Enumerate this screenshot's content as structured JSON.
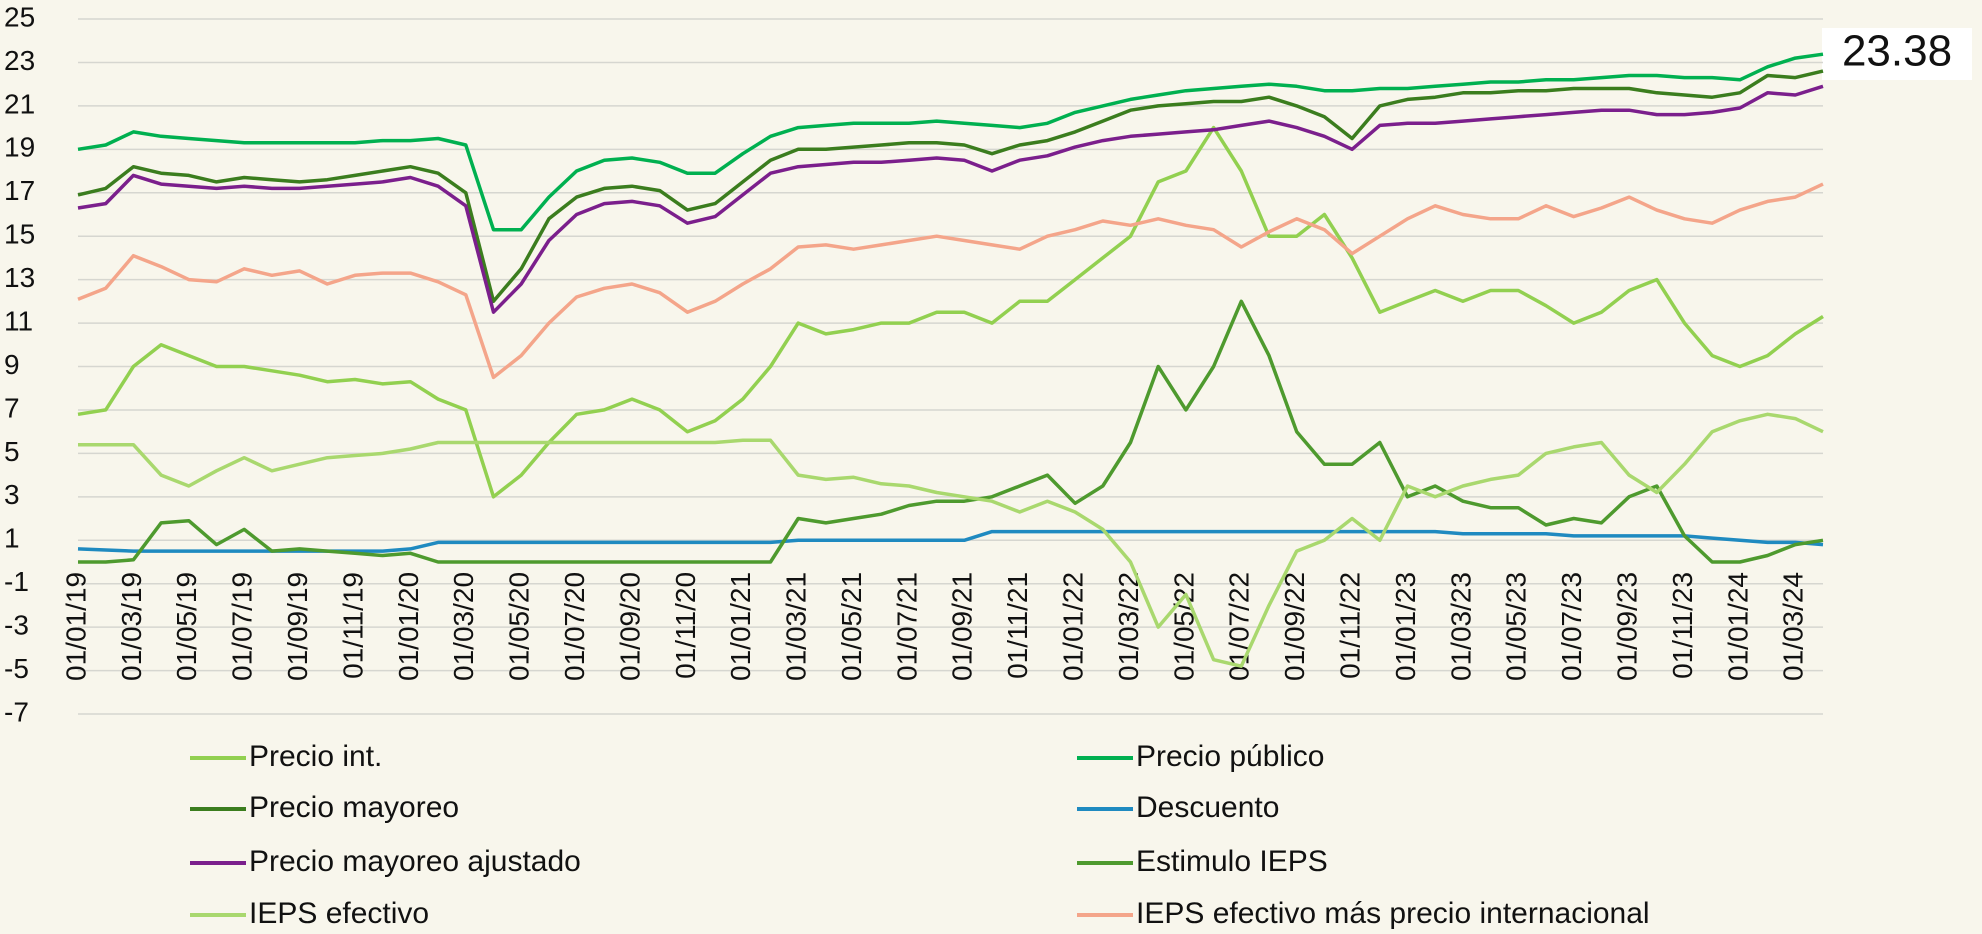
{
  "chart_data": {
    "type": "line",
    "annotation": "23.38",
    "categories": [
      "01/01/19",
      null,
      "01/03/19",
      null,
      "01/05/19",
      null,
      "01/07/19",
      null,
      "01/09/19",
      null,
      "01/11/19",
      null,
      "01/01/20",
      null,
      "01/03/20",
      null,
      "01/05/20",
      null,
      "01/07/20",
      null,
      "01/09/20",
      null,
      "01/11/20",
      null,
      "01/01/21",
      null,
      "01/03/21",
      null,
      "01/05/21",
      null,
      "01/07/21",
      null,
      "01/09/21",
      null,
      "01/11/21",
      null,
      "01/01/22",
      null,
      "01/03/22",
      null,
      "01/05/22",
      null,
      "01/07/22",
      null,
      "01/09/22",
      null,
      "01/11/22",
      null,
      "01/01/23",
      null,
      "01/03/23",
      null,
      "01/05/23",
      null,
      "01/07/23",
      null,
      "01/09/23",
      null,
      "01/11/23",
      null,
      "01/01/24",
      null,
      "01/03/24",
      null
    ],
    "ylim": [
      -7,
      25
    ],
    "yticks": [
      -7,
      -5,
      -3,
      -1,
      1,
      3,
      5,
      7,
      9,
      11,
      13,
      15,
      17,
      19,
      21,
      23,
      25
    ],
    "grid": true,
    "series": [
      {
        "name": "Precio int.",
        "color": "#92d050",
        "values": [
          6.8,
          7.0,
          9.0,
          10.0,
          9.5,
          9.0,
          9.0,
          8.8,
          8.6,
          8.3,
          8.4,
          8.2,
          8.3,
          7.5,
          7.0,
          3.0,
          4.0,
          5.5,
          6.8,
          7.0,
          7.5,
          7.0,
          6.0,
          6.5,
          7.5,
          9.0,
          11.0,
          10.5,
          10.7,
          11.0,
          11.0,
          11.5,
          11.5,
          11.0,
          12.0,
          12.0,
          13.0,
          14.0,
          15.0,
          17.5,
          18.0,
          20.0,
          18.0,
          15.0,
          15.0,
          16.0,
          14.0,
          11.5,
          12.0,
          12.5,
          12.0,
          12.5,
          12.5,
          11.8,
          11.0,
          11.5,
          12.5,
          13.0,
          11.0,
          9.5,
          9.0,
          9.5,
          10.5,
          11.3
        ]
      },
      {
        "name": "Precio público",
        "color": "#00b050",
        "values": [
          19,
          19.2,
          19.8,
          19.6,
          19.5,
          19.4,
          19.3,
          19.3,
          19.3,
          19.3,
          19.3,
          19.4,
          19.4,
          19.5,
          19.2,
          15.3,
          15.3,
          16.8,
          18.0,
          18.5,
          18.6,
          18.4,
          17.9,
          17.9,
          18.8,
          19.6,
          20.0,
          20.1,
          20.2,
          20.2,
          20.2,
          20.3,
          20.2,
          20.1,
          20.0,
          20.2,
          20.7,
          21.0,
          21.3,
          21.5,
          21.7,
          21.8,
          21.9,
          22.0,
          21.9,
          21.7,
          21.7,
          21.8,
          21.8,
          21.9,
          22.0,
          22.1,
          22.1,
          22.2,
          22.2,
          22.3,
          22.4,
          22.4,
          22.3,
          22.3,
          22.2,
          22.8,
          23.2,
          23.38
        ]
      },
      {
        "name": "Precio mayoreo",
        "color": "#3b7d1e",
        "values": [
          16.9,
          17.2,
          18.2,
          17.9,
          17.8,
          17.5,
          17.7,
          17.6,
          17.5,
          17.6,
          17.8,
          18.0,
          18.2,
          17.9,
          17.0,
          12.0,
          13.5,
          15.8,
          16.8,
          17.2,
          17.3,
          17.1,
          16.2,
          16.5,
          17.5,
          18.5,
          19.0,
          19.0,
          19.1,
          19.2,
          19.3,
          19.3,
          19.2,
          18.8,
          19.2,
          19.4,
          19.8,
          20.3,
          20.8,
          21.0,
          21.1,
          21.2,
          21.2,
          21.4,
          21.0,
          20.5,
          19.5,
          21.0,
          21.3,
          21.4,
          21.6,
          21.6,
          21.7,
          21.7,
          21.8,
          21.8,
          21.8,
          21.6,
          21.5,
          21.4,
          21.6,
          22.4,
          22.3,
          22.6
        ]
      },
      {
        "name": "Descuento",
        "color": "#1f8ac0",
        "values": [
          0.6,
          0.55,
          0.5,
          0.5,
          0.5,
          0.5,
          0.5,
          0.5,
          0.5,
          0.5,
          0.5,
          0.5,
          0.6,
          0.9,
          0.9,
          0.9,
          0.9,
          0.9,
          0.9,
          0.9,
          0.9,
          0.9,
          0.9,
          0.9,
          0.9,
          0.9,
          1.0,
          1.0,
          1.0,
          1.0,
          1.0,
          1.0,
          1.0,
          1.4,
          1.4,
          1.4,
          1.4,
          1.4,
          1.4,
          1.4,
          1.4,
          1.4,
          1.4,
          1.4,
          1.4,
          1.4,
          1.4,
          1.4,
          1.4,
          1.4,
          1.3,
          1.3,
          1.3,
          1.3,
          1.2,
          1.2,
          1.2,
          1.2,
          1.2,
          1.1,
          1.0,
          0.9,
          0.9,
          0.8
        ]
      },
      {
        "name": "Precio mayoreo ajustado",
        "color": "#7b1f8c",
        "values": [
          16.3,
          16.5,
          17.8,
          17.4,
          17.3,
          17.2,
          17.3,
          17.2,
          17.2,
          17.3,
          17.4,
          17.5,
          17.7,
          17.3,
          16.4,
          11.5,
          12.8,
          14.8,
          16.0,
          16.5,
          16.6,
          16.4,
          15.6,
          15.9,
          16.9,
          17.9,
          18.2,
          18.3,
          18.4,
          18.4,
          18.5,
          18.6,
          18.5,
          18.0,
          18.5,
          18.7,
          19.1,
          19.4,
          19.6,
          19.7,
          19.8,
          19.9,
          20.1,
          20.3,
          20.0,
          19.6,
          19.0,
          20.1,
          20.2,
          20.2,
          20.3,
          20.4,
          20.5,
          20.6,
          20.7,
          20.8,
          20.8,
          20.6,
          20.6,
          20.7,
          20.9,
          21.6,
          21.5,
          21.9
        ]
      },
      {
        "name": "Estimulo IEPS",
        "color": "#4e9a2e",
        "values": [
          0,
          0,
          0.1,
          1.8,
          1.9,
          0.8,
          1.5,
          0.5,
          0.6,
          0.5,
          0.4,
          0.3,
          0.4,
          0,
          0,
          0,
          0,
          0,
          0,
          0,
          0,
          0,
          0,
          0,
          0,
          0,
          2.0,
          1.8,
          2.0,
          2.2,
          2.6,
          2.8,
          2.8,
          3.0,
          3.5,
          4.0,
          2.7,
          3.5,
          5.5,
          9.0,
          7.0,
          9.0,
          12.0,
          9.5,
          6.0,
          4.5,
          4.5,
          5.5,
          3.0,
          3.5,
          2.8,
          2.5,
          2.5,
          1.7,
          2.0,
          1.8,
          3.0,
          3.5,
          1.2,
          0,
          0,
          0.3,
          0.8,
          1.0
        ]
      },
      {
        "name": "IEPS efectivo",
        "color": "#a9d86e",
        "values": [
          5.4,
          5.4,
          5.4,
          4.0,
          3.5,
          4.2,
          4.8,
          4.2,
          4.5,
          4.8,
          4.9,
          5.0,
          5.2,
          5.5,
          5.5,
          5.5,
          5.5,
          5.5,
          5.5,
          5.5,
          5.5,
          5.5,
          5.5,
          5.5,
          5.6,
          5.6,
          4.0,
          3.8,
          3.9,
          3.6,
          3.5,
          3.2,
          3.0,
          2.8,
          2.3,
          2.8,
          2.3,
          1.5,
          0.0,
          -3.0,
          -1.5,
          -4.5,
          -4.8,
          -2.0,
          0.5,
          1.0,
          2.0,
          1.0,
          3.5,
          3.0,
          3.5,
          3.8,
          4.0,
          5.0,
          5.3,
          5.5,
          4.0,
          3.2,
          4.5,
          6.0,
          6.5,
          6.8,
          6.6,
          6.0
        ]
      },
      {
        "name": "IEPS efectivo más precio internacional",
        "color": "#f4a58a",
        "values": [
          12.1,
          12.6,
          14.1,
          13.6,
          13.0,
          12.9,
          13.5,
          13.2,
          13.4,
          12.8,
          13.2,
          13.3,
          13.3,
          12.9,
          12.3,
          8.5,
          9.5,
          11.0,
          12.2,
          12.6,
          12.8,
          12.4,
          11.5,
          12.0,
          12.8,
          13.5,
          14.5,
          14.6,
          14.4,
          14.6,
          14.8,
          15.0,
          14.8,
          14.6,
          14.4,
          15.0,
          15.3,
          15.7,
          15.5,
          15.8,
          15.5,
          15.3,
          14.5,
          15.2,
          15.8,
          15.3,
          14.2,
          15.0,
          15.8,
          16.4,
          16.0,
          15.8,
          15.8,
          16.4,
          15.9,
          16.3,
          16.8,
          16.2,
          15.8,
          15.6,
          16.2,
          16.6,
          16.8,
          17.4
        ]
      }
    ]
  }
}
